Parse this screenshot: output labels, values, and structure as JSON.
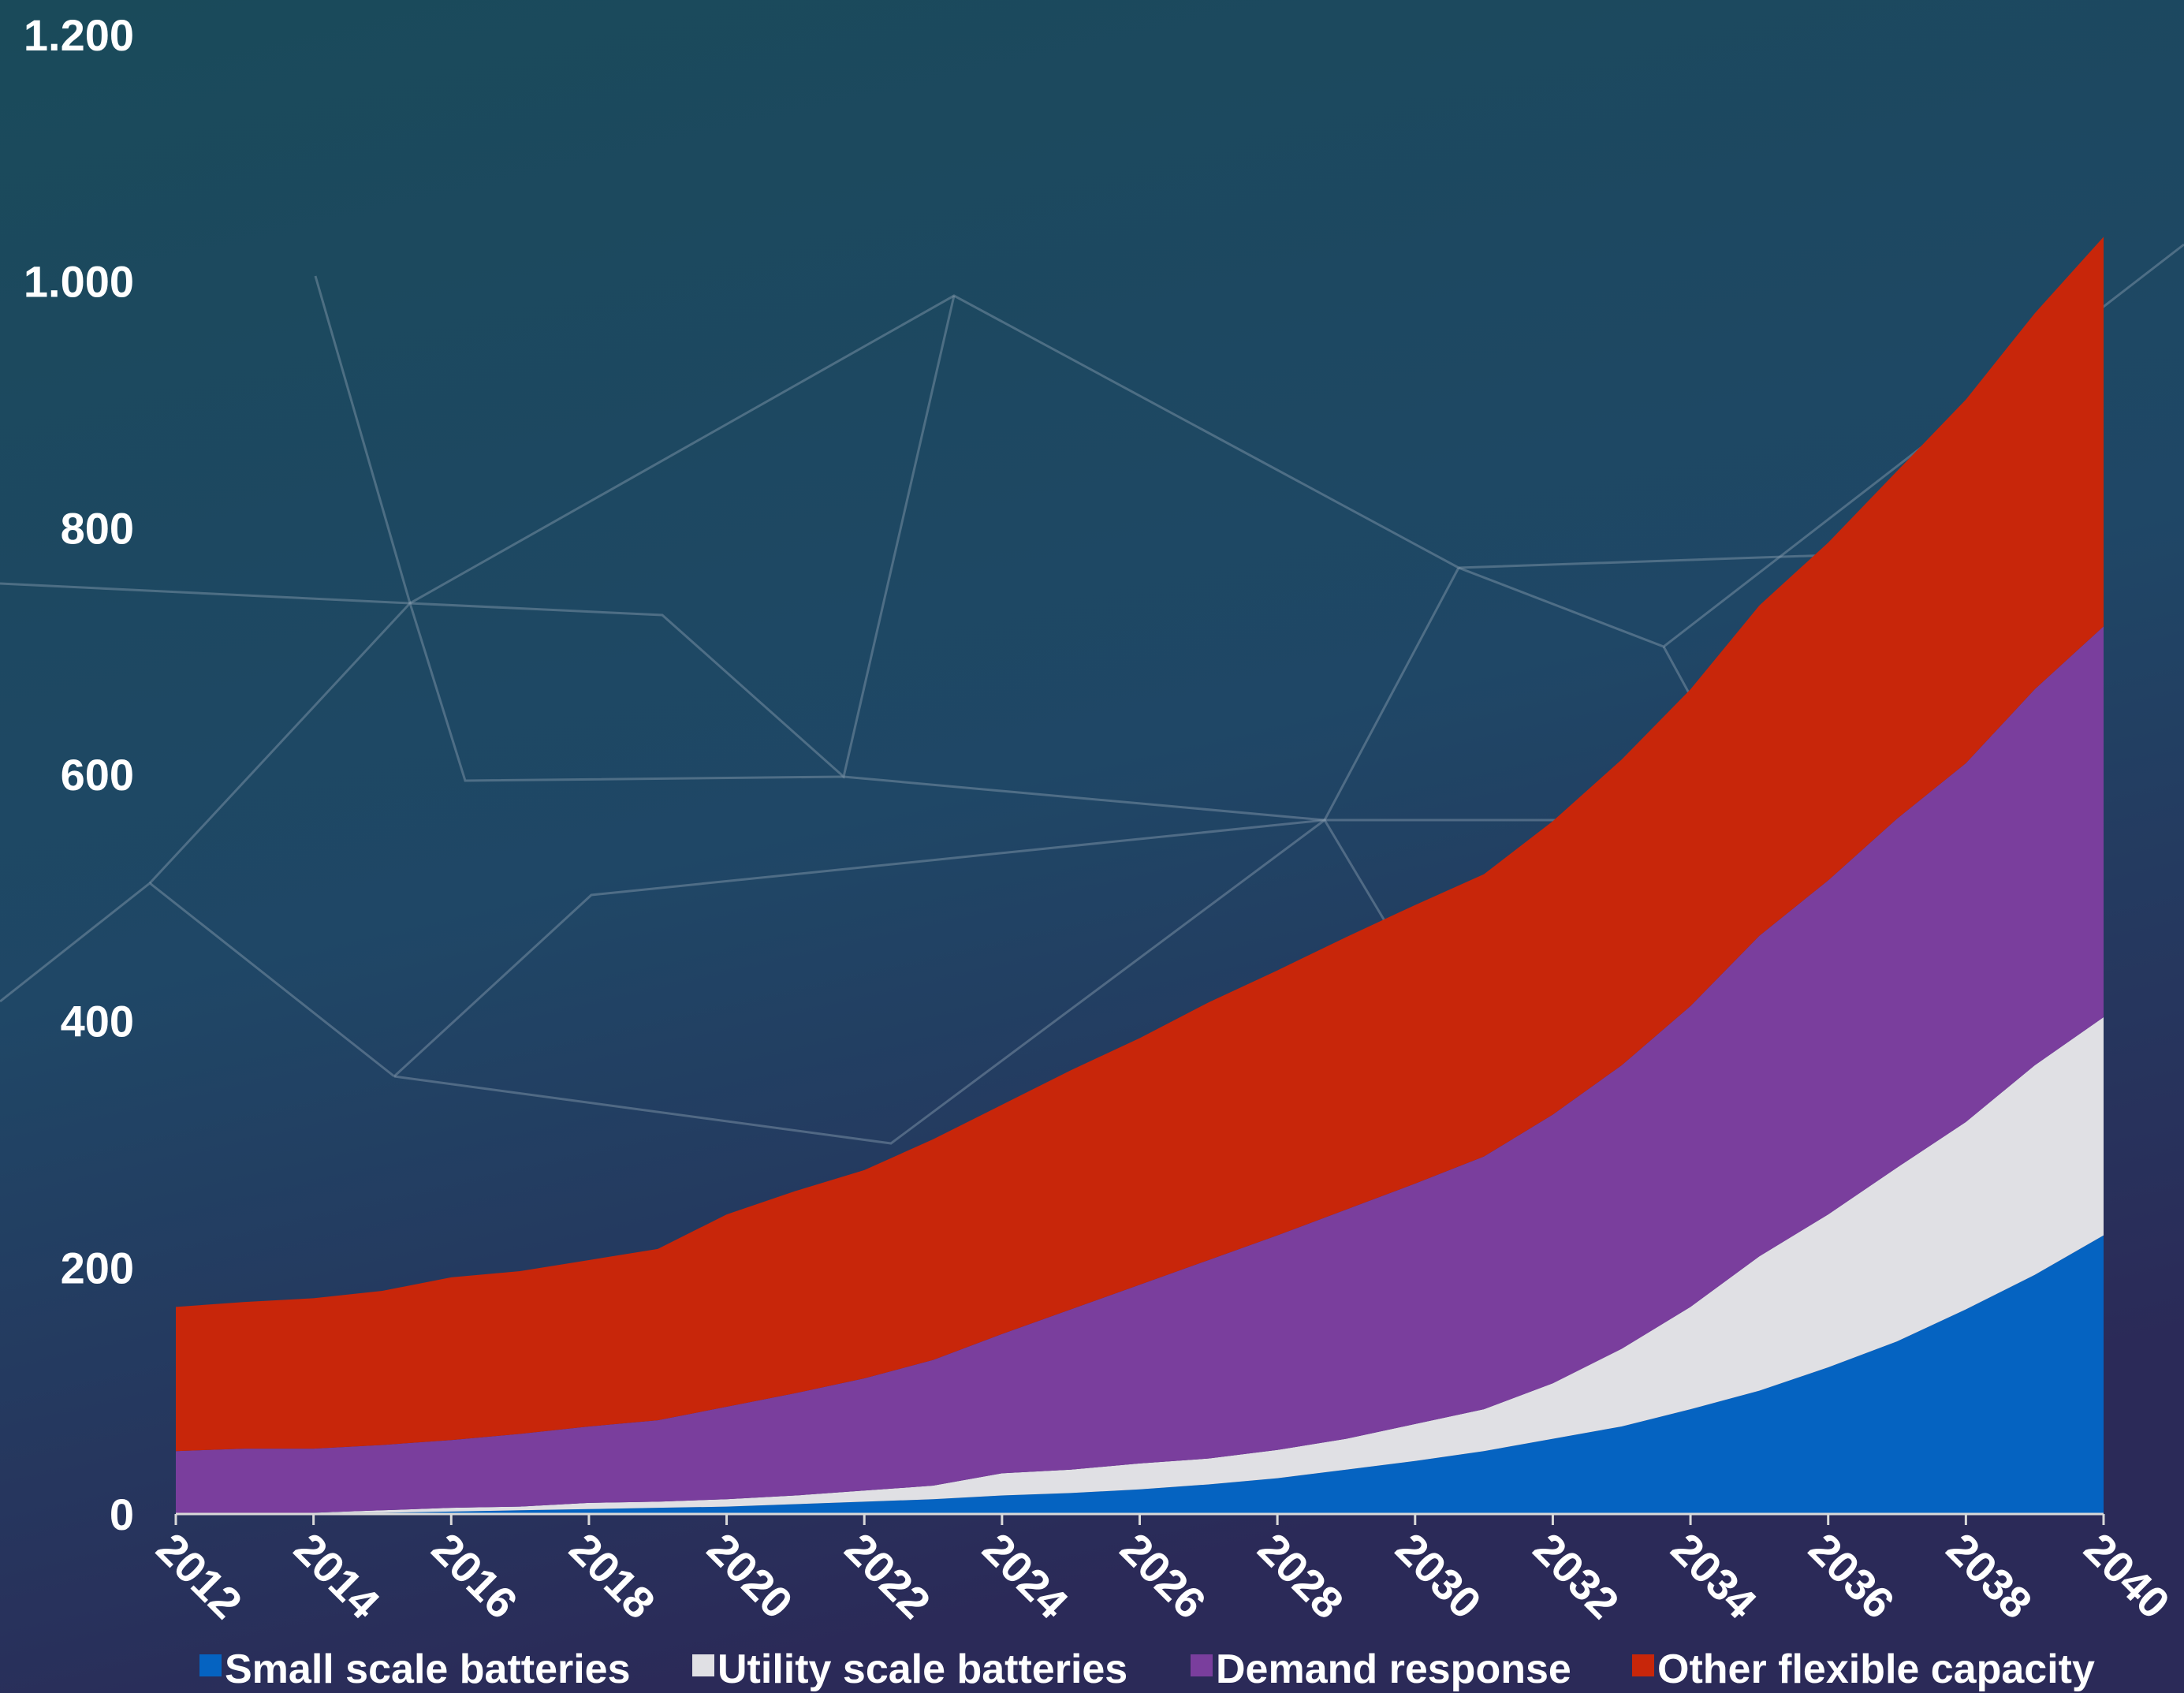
{
  "chart_data": {
    "type": "stacked-area",
    "x": [
      2012,
      2013,
      2014,
      2015,
      2016,
      2017,
      2018,
      2019,
      2020,
      2021,
      2022,
      2023,
      2024,
      2025,
      2026,
      2027,
      2028,
      2029,
      2030,
      2031,
      2032,
      2033,
      2034,
      2035,
      2036,
      2037,
      2038,
      2039,
      2040
    ],
    "xlim": [
      2012,
      2040
    ],
    "xticks": [
      2012,
      2014,
      2016,
      2018,
      2020,
      2022,
      2024,
      2026,
      2028,
      2030,
      2032,
      2034,
      2036,
      2038,
      2040
    ],
    "ylim": [
      0,
      1200
    ],
    "yticks": [
      0,
      200,
      400,
      600,
      800,
      {
        "value": 1000,
        "label": "1.000"
      },
      {
        "value": 1200,
        "label": "1.200"
      }
    ],
    "series": [
      {
        "name": "Small scale batteries",
        "color": "#0563c1",
        "values": [
          0,
          0,
          1,
          1,
          2,
          3,
          4,
          5,
          6,
          8,
          10,
          12,
          15,
          17,
          20,
          24,
          29,
          36,
          43,
          51,
          61,
          71,
          85,
          100,
          119,
          140,
          166,
          194,
          226
        ]
      },
      {
        "name": "Utility scale batteries",
        "color": "#e0e0e4",
        "values": [
          0,
          0,
          0,
          2,
          3,
          3,
          5,
          5,
          6,
          7,
          9,
          11,
          18,
          19,
          21,
          21,
          23,
          25,
          30,
          34,
          45,
          63,
          83,
          109,
          124,
          141,
          152,
          170,
          177
        ]
      },
      {
        "name": "Demand response",
        "color": "#7a3e9d",
        "values": [
          51,
          53,
          52,
          53,
          55,
          59,
          62,
          66,
          75,
          83,
          91,
          102,
          113,
          130,
          145,
          161,
          174,
          186,
          195,
          205,
          218,
          230,
          244,
          260,
          271,
          283,
          291,
          305,
          317
        ]
      },
      {
        "name": "Other flexible capacity",
        "color": "#c8260a",
        "values": [
          117,
          119,
          122,
          125,
          132,
          132,
          135,
          139,
          156,
          164,
          169,
          179,
          186,
          194,
          200,
          209,
          215,
          221,
          226,
          229,
          238,
          248,
          257,
          268,
          274,
          282,
          295,
          305,
          316
        ]
      }
    ]
  }
}
